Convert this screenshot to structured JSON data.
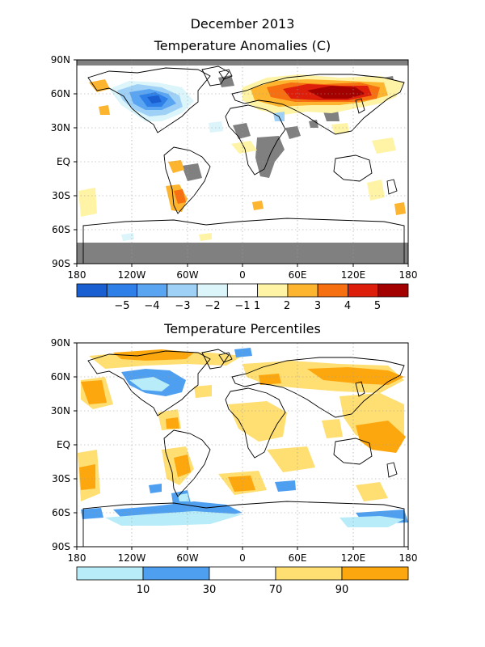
{
  "header": {
    "date": "December 2013",
    "anomaly_title": "Temperature Anomalies (C)",
    "percentile_title": "Temperature Percentiles"
  },
  "axes": {
    "lat_labels": [
      "90N",
      "60N",
      "30N",
      "EQ",
      "30S",
      "60S",
      "90S"
    ],
    "lon_labels": [
      "180",
      "120W",
      "60W",
      "0",
      "60E",
      "120E",
      "180"
    ]
  },
  "anomaly_legend": {
    "colors": [
      "#1a5fd1",
      "#2f7fe8",
      "#5aa5f2",
      "#9fd1f7",
      "#dbf5fb",
      "#ffffff",
      "#fff3a6",
      "#fdb42f",
      "#f66f10",
      "#dc1e0a",
      "#a30000"
    ],
    "labels": [
      "−5",
      "−4",
      "−3",
      "−2",
      "−1",
      "1",
      "2",
      "3",
      "4",
      "5"
    ]
  },
  "percentile_legend": {
    "colors": [
      "#b7ecf8",
      "#4f9ff0",
      "#ffffff",
      "#ffde72",
      "#fda70f"
    ],
    "labels": [
      "10",
      "30",
      "70",
      "90"
    ]
  },
  "colors": {
    "missing": "#808080",
    "land_outline": "#000000",
    "grid": "#9a9a9a"
  }
}
